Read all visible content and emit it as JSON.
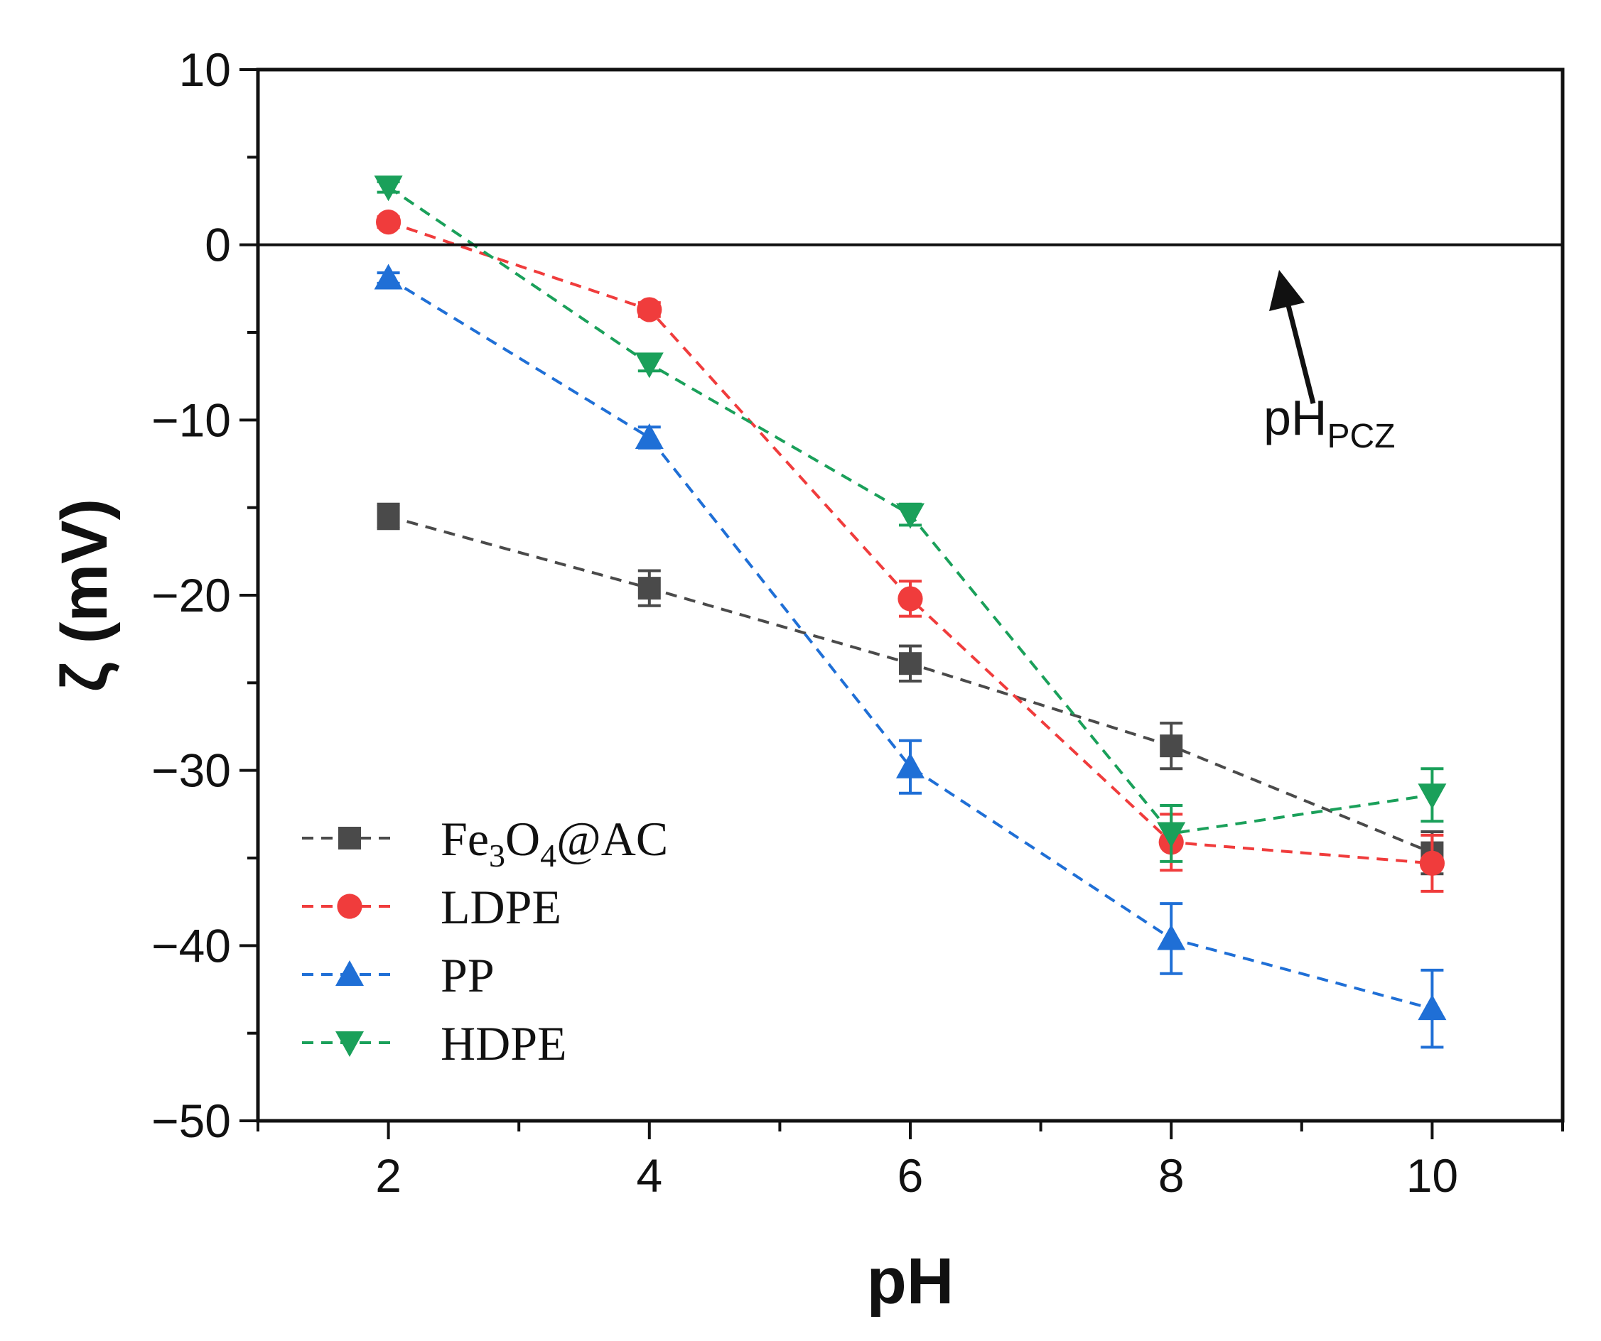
{
  "chart_data": {
    "type": "line",
    "title": "",
    "xlabel": "pH",
    "ylabel": "ζ (mV)",
    "xlim": [
      1,
      11
    ],
    "ylim": [
      -50,
      10
    ],
    "xticks": [
      2,
      4,
      6,
      8,
      10
    ],
    "yticks": [
      10,
      0,
      -10,
      -20,
      -30,
      -40,
      -50
    ],
    "ytick_labels": [
      "10",
      "0",
      "−10",
      "−20",
      "−30",
      "−40",
      "−50"
    ],
    "x": [
      2,
      4,
      6,
      8,
      10
    ],
    "reference_line_y": 0,
    "legend_position": "bottom-left",
    "series": [
      {
        "name": "Fe3O4@AC",
        "legend_parts": {
          "a": "Fe",
          "sub1": "3",
          "b": "O",
          "sub2": "4",
          "c": "@AC"
        },
        "color": "#4a4a4a",
        "marker": "square",
        "values": [
          -15.5,
          -19.6,
          -23.9,
          -28.6,
          -34.7
        ],
        "errors": [
          0.7,
          1.0,
          1.0,
          1.3,
          1.2
        ]
      },
      {
        "name": "LDPE",
        "color": "#f03c3c",
        "marker": "circle",
        "values": [
          1.3,
          -3.7,
          -20.2,
          -34.1,
          -35.3
        ],
        "errors": [
          0.3,
          0.4,
          1.0,
          1.6,
          1.6
        ]
      },
      {
        "name": "PP",
        "color": "#1f6fd6",
        "marker": "triangle-up",
        "values": [
          -1.9,
          -11.0,
          -29.8,
          -39.6,
          -43.6
        ],
        "errors": [
          0.3,
          0.6,
          1.5,
          2.0,
          2.2
        ]
      },
      {
        "name": "HDPE",
        "color": "#1aa05a",
        "marker": "triangle-down",
        "values": [
          3.3,
          -6.8,
          -15.4,
          -33.6,
          -31.4
        ],
        "errors": [
          0.3,
          0.4,
          0.6,
          1.6,
          1.5
        ]
      }
    ],
    "annotation": {
      "text_main": "pH",
      "text_sub": "PCZ"
    }
  }
}
